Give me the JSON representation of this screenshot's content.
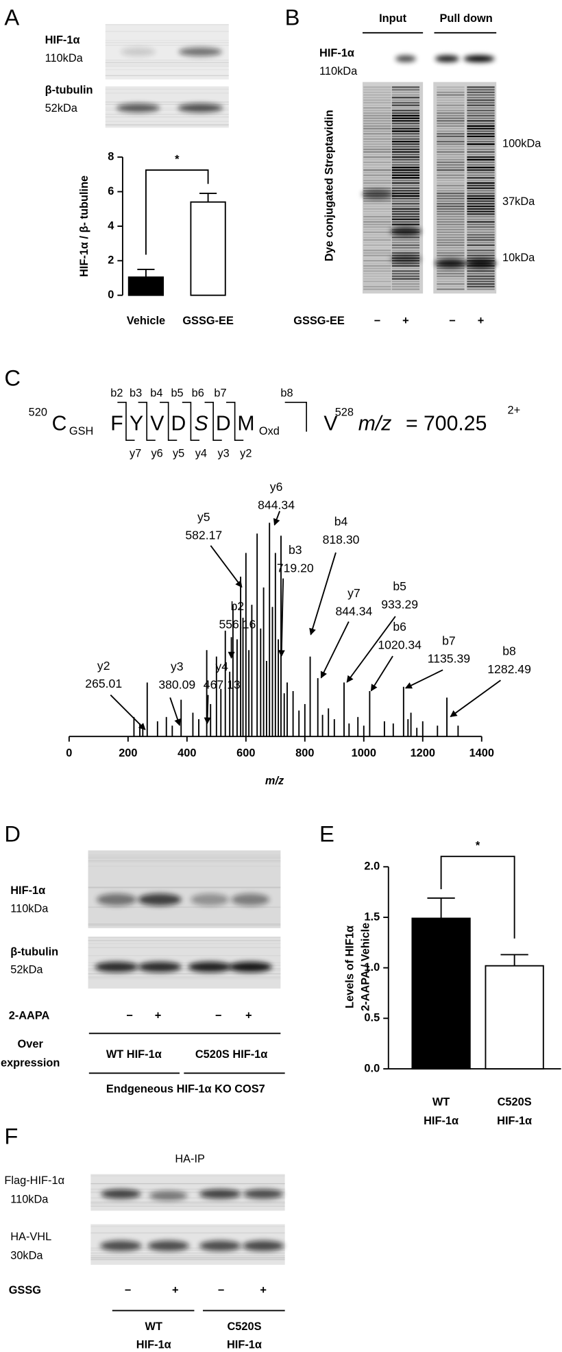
{
  "panel_labels": [
    "A",
    "B",
    "C",
    "D",
    "E",
    "F"
  ],
  "panel_a": {
    "blot_labels": [
      [
        "HIF-1α",
        "110kDa"
      ],
      [
        "β-tubulin",
        "52kDa"
      ]
    ]
  },
  "panel_b": {
    "lane_groups": [
      "Input",
      "Pull down"
    ],
    "blot_label": [
      "HIF-1α",
      "110kDa"
    ],
    "stain_label": "Dye conjugated Streptavidin",
    "markers": [
      "100kDa",
      "37kDa",
      "10kDa"
    ],
    "treatment": "GSSG-EE",
    "signs": [
      "−",
      "+",
      "−",
      "+"
    ]
  },
  "panel_c": {
    "start": "520",
    "residues": [
      "C",
      "F",
      "Y",
      "V",
      "D",
      "S",
      "D",
      "M",
      "V"
    ],
    "subscripts": [
      "GSH",
      "Oxd"
    ],
    "end": "528",
    "b_ions": [
      "b2",
      "b3",
      "b4",
      "b5",
      "b6",
      "b7",
      "b8"
    ],
    "y_ions": [
      "y7",
      "y6",
      "y5",
      "y4",
      "y3",
      "y2"
    ],
    "mz_symbol": "m/z",
    "mz_value": "= 700.25",
    "charge": "2+"
  },
  "panel_d": {
    "blot_labels": [
      [
        "HIF-1α",
        "110kDa"
      ],
      [
        "β-tubulin",
        "52kDa"
      ]
    ],
    "treatment": "2-AAPA",
    "signs": [
      "−",
      "+",
      "−",
      "+"
    ],
    "row_label": [
      "Over",
      "expression"
    ],
    "groups": [
      "WT HIF-1α",
      "C520S HIF-1α"
    ],
    "cell_line": "Endgeneous HIF-1α KO COS7"
  },
  "panel_f": {
    "title": "HA-IP",
    "blot_labels": [
      [
        "Flag-HIF-1α",
        "110kDa"
      ],
      [
        "HA-VHL",
        "30kDa"
      ]
    ],
    "treatment": "GSSG",
    "signs": [
      "−",
      "+",
      "−",
      "+"
    ],
    "groups": [
      [
        "WT",
        "HIF-1α"
      ],
      [
        "C520S",
        "HIF-1α"
      ]
    ]
  },
  "chart_data": [
    {
      "type": "bar",
      "ylabel": "HIF-1α / β- tubuline",
      "categories": [
        "Vehicle",
        "GSSG-EE"
      ],
      "values": [
        1.05,
        5.4
      ],
      "errors": [
        0.45,
        0.5
      ],
      "colors": [
        "#000000",
        "#ffffff"
      ],
      "ylim": [
        0,
        8
      ],
      "yticks": [
        0,
        2,
        4,
        6,
        8
      ],
      "annotation": "*"
    },
    {
      "type": "stem",
      "xlabel": "m/z",
      "x": [
        220,
        240,
        250,
        265,
        300,
        330,
        350,
        380,
        420,
        440,
        467,
        480,
        500,
        515,
        530,
        545,
        556,
        570,
        582,
        590,
        600,
        610,
        620,
        638,
        650,
        660,
        670,
        680,
        690,
        700,
        710,
        719,
        730,
        740,
        760,
        780,
        800,
        818,
        844,
        860,
        880,
        900,
        933,
        950,
        980,
        1000,
        1020,
        1070,
        1100,
        1135,
        1150,
        1160,
        1180,
        1200,
        1250,
        1282,
        1320
      ],
      "values": [
        9,
        6,
        4,
        25,
        7,
        9,
        5,
        17,
        11,
        8,
        40,
        15,
        37,
        22,
        49,
        30,
        61,
        45,
        74,
        55,
        85,
        40,
        61,
        94,
        50,
        69,
        35,
        99,
        60,
        85,
        45,
        93,
        20,
        25,
        21,
        12,
        15,
        37,
        27,
        10,
        13,
        8,
        25,
        6,
        9,
        5,
        21,
        7,
        6,
        23,
        8,
        11,
        4,
        7,
        5,
        18,
        5
      ],
      "xlim": [
        0,
        1400
      ],
      "xticks": [
        0,
        200,
        400,
        600,
        800,
        1000,
        1200,
        1400
      ],
      "ylim": [
        0,
        100
      ],
      "color": "#000000",
      "annotations": [
        {
          "ion": "y2",
          "mz": "265.01"
        },
        {
          "ion": "y3",
          "mz": "380.09"
        },
        {
          "ion": "y4",
          "mz": "467.13"
        },
        {
          "ion": "b2",
          "mz": "556.16"
        },
        {
          "ion": "y5",
          "mz": "582.17"
        },
        {
          "ion": "y6",
          "mz": "844.34"
        },
        {
          "ion": "b3",
          "mz": "719.20"
        },
        {
          "ion": "b4",
          "mz": "818.30"
        },
        {
          "ion": "y7",
          "mz": "844.34"
        },
        {
          "ion": "b5",
          "mz": "933.29"
        },
        {
          "ion": "b6",
          "mz": "1020.34"
        },
        {
          "ion": "b7",
          "mz": "1135.39"
        },
        {
          "ion": "b8",
          "mz": "1282.49"
        }
      ]
    },
    {
      "type": "bar",
      "ylabel": [
        "Levels of HIF1α",
        "2-AAPA / Vehicle"
      ],
      "categories": [
        [
          "WT",
          "HIF-1α"
        ],
        [
          "C520S",
          "HIF-1α"
        ]
      ],
      "values": [
        1.49,
        1.02
      ],
      "errors": [
        0.2,
        0.11
      ],
      "colors": [
        "#000000",
        "#ffffff"
      ],
      "ylim": [
        0,
        2
      ],
      "yticks": [
        {
          "value": 0,
          "label": "0.0"
        },
        0.5,
        {
          "value": 1,
          "label": "1.0"
        },
        1.5,
        {
          "value": 2,
          "label": "2.0"
        }
      ],
      "annotation": "*"
    }
  ]
}
